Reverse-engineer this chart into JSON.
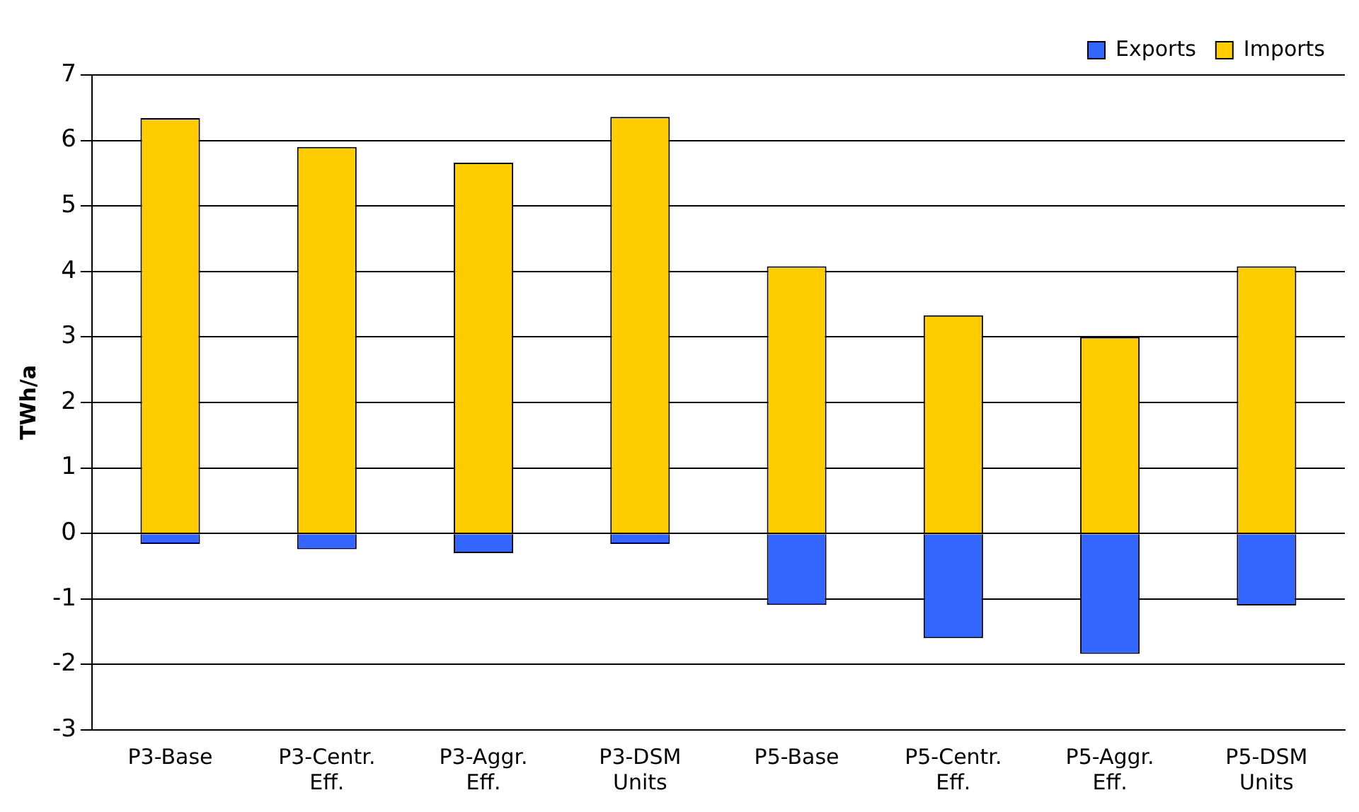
{
  "chart_data": {
    "type": "bar",
    "ylabel": "TWh/a",
    "stacked": true,
    "categories": [
      "P3-Base",
      "P3-Centr. Eff.",
      "P3-Aggr. Eff.",
      "P3-DSM Units",
      "P5-Base",
      "P5-Centr. Eff.",
      "P5-Aggr. Eff.",
      "P5-DSM Units"
    ],
    "series": [
      {
        "name": "Exports",
        "color": "#3366ff",
        "values": [
          -0.16,
          -0.24,
          -0.3,
          -0.16,
          -1.09,
          -1.6,
          -1.84,
          -1.1
        ]
      },
      {
        "name": "Imports",
        "color": "#ffcc00",
        "values": [
          6.34,
          5.9,
          5.66,
          6.36,
          4.08,
          3.33,
          3.0,
          4.08
        ]
      }
    ],
    "ylim": [
      -3,
      7
    ],
    "yticks": [
      -3,
      -2,
      -1,
      0,
      1,
      2,
      3,
      4,
      5,
      6,
      7
    ],
    "grid": "y",
    "legend": "top right"
  }
}
